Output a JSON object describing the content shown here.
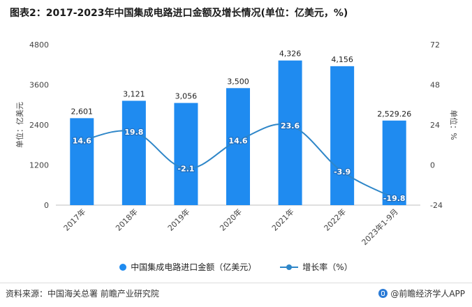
{
  "header": {
    "title": "图表2：2017-2023年中国集成电路进口金额及增长情况(单位：亿美元，%)"
  },
  "chart_data": {
    "type": "bar",
    "title": "图表2：2017-2023年中国集成电路进口金额及增长情况(单位：亿美元，%)",
    "categories": [
      "2017年",
      "2018年",
      "2019年",
      "2020年",
      "2021年",
      "2022年",
      "2023年1-9月"
    ],
    "series": [
      {
        "name": "中国集成电路进口金额（亿美元）",
        "type": "bar",
        "axis": "left",
        "color": "#1f8bf0",
        "values": [
          2601,
          3121,
          3056,
          3500,
          4326,
          4156,
          2529.26
        ],
        "labels": [
          "2,601",
          "3,121",
          "3,056",
          "3,500",
          "4,326",
          "4,156",
          "2,529.26"
        ]
      },
      {
        "name": "增长率（%）",
        "type": "line",
        "axis": "right",
        "color": "#2e86c8",
        "values": [
          14.6,
          19.8,
          -2.1,
          14.6,
          23.6,
          -3.9,
          -19.8
        ],
        "labels": [
          "14.6",
          "19.8",
          "-2.1",
          "14.6",
          "23.6",
          "-3.9",
          "-19.8"
        ]
      }
    ],
    "y_left": {
      "label": "单位：亿美元",
      "min": 0,
      "max": 4800,
      "ticks": [
        "0",
        "1200",
        "2400",
        "3600",
        "4800"
      ]
    },
    "y_right": {
      "label": "单位：%",
      "min": -24,
      "max": 72,
      "ticks": [
        "-24",
        "0",
        "24",
        "48",
        "72"
      ]
    },
    "legend": [
      "中国集成电路进口金额（亿美元）",
      "增长率（%）"
    ],
    "grid": false
  },
  "footer": {
    "source": "资料来源：中国海关总署 前瞻产业研究院",
    "credit": "@前瞻经济学人APP"
  }
}
